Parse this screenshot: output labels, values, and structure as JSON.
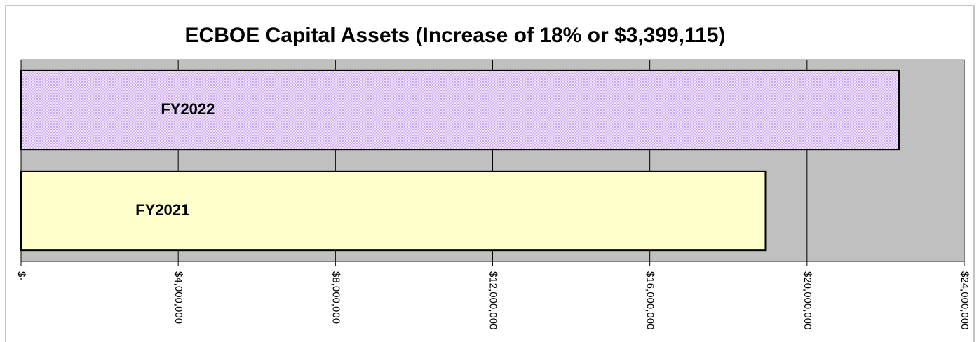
{
  "chart_data": {
    "type": "hbar",
    "title": "ECBOE Capital Assets (Increase of 18% or $3,399,115)",
    "categories": [
      "FY2022",
      "FY2021"
    ],
    "series": [
      {
        "name": "Capital Assets",
        "colors": [
          "#e6ccf7",
          "#ffffcc"
        ],
        "values": [
          22340000,
          18940885
        ]
      }
    ],
    "xlim": [
      0,
      24000000
    ],
    "xticks": [
      {
        "value": 0,
        "label": "$-"
      },
      {
        "value": 4000000,
        "label": "$4,000,000"
      },
      {
        "value": 8000000,
        "label": "$8,000,000"
      },
      {
        "value": 12000000,
        "label": "$12,000,000"
      },
      {
        "value": 16000000,
        "label": "$16,000,000"
      },
      {
        "value": 20000000,
        "label": "$20,000,000"
      },
      {
        "value": 24000000,
        "label": "$24,000,000"
      }
    ],
    "grid": true
  }
}
